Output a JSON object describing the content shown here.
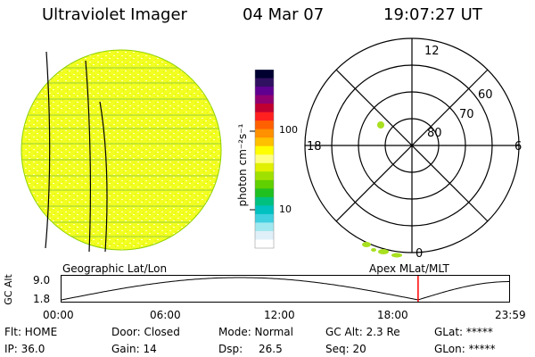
{
  "header": {
    "title": "Ultraviolet Imager",
    "date": "04 Mar 07",
    "time": "19:07:27 UT"
  },
  "colorbar": {
    "unit_label": "photon cm⁻²s⁻¹",
    "ticks": [
      "100",
      "10"
    ],
    "colors": [
      "#000030",
      "#301060",
      "#600090",
      "#900070",
      "#c00030",
      "#ff2020",
      "#ff6000",
      "#ff9000",
      "#ffc000",
      "#ffff00",
      "#ffff80",
      "#e0f000",
      "#a0e000",
      "#60d000",
      "#20c020",
      "#00c080",
      "#00c0c0",
      "#40d0e0",
      "#a0e8f0",
      "#e0f0f8",
      "#ffffff"
    ]
  },
  "polar_plot": {
    "labels": [
      "12",
      "60",
      "70",
      "80",
      "18",
      "6",
      "0"
    ]
  },
  "timeline": {
    "left_label": "Geographic Lat/Lon",
    "right_label": "Apex MLat/MLT",
    "y_axis_label": "GC Alt",
    "y_ticks": [
      "9.0",
      "1.8"
    ],
    "x_ticks": [
      "00:00",
      "06:00",
      "12:00",
      "18:00",
      "23:59"
    ],
    "marker_color": "#ff0000",
    "marker_fraction": 0.795
  },
  "status": {
    "filter": "Flt: HOME",
    "ip": "IP: 36.0",
    "door": "Door: Closed",
    "gain": "Gain: 14",
    "mode": "Mode: Normal",
    "dsp_label": "Dsp:",
    "dsp_value": "26.5",
    "gc_alt": "GC Alt: 2.3 Re",
    "seq": "Seq: 20",
    "glat": "GLat: *****",
    "glon": "GLon: *****"
  }
}
